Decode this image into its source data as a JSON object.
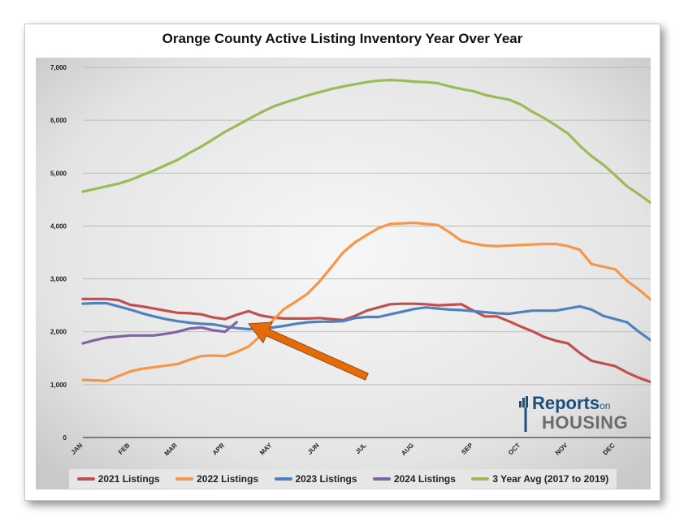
{
  "chart_data": {
    "type": "line",
    "title": "Orange County Active Listing Inventory Year Over Year",
    "xlabel": "",
    "ylabel": "",
    "ylim": [
      0,
      7000
    ],
    "yticks": [
      "0",
      "1,000",
      "2,000",
      "3,000",
      "4,000",
      "5,000",
      "6,000",
      "7,000"
    ],
    "x_month_labels": [
      {
        "label": "JAN",
        "week": 1
      },
      {
        "label": "FEB",
        "week": 5
      },
      {
        "label": "MAR",
        "week": 9
      },
      {
        "label": "APR",
        "week": 13
      },
      {
        "label": "MAY",
        "week": 17
      },
      {
        "label": "JUN",
        "week": 21
      },
      {
        "label": "JUL",
        "week": 25
      },
      {
        "label": "AUG",
        "week": 29
      },
      {
        "label": "SEP",
        "week": 34
      },
      {
        "label": "OCT",
        "week": 38
      },
      {
        "label": "NOV",
        "week": 42
      },
      {
        "label": "DEC",
        "week": 46
      }
    ],
    "x_range": [
      1,
      49
    ],
    "grid": true,
    "legend_position": "bottom",
    "series": [
      {
        "name": "2021 Listings",
        "color": "#c0504d",
        "x": [
          1,
          2,
          3,
          4,
          5,
          6,
          7,
          8,
          9,
          10,
          11,
          12,
          13,
          14,
          15,
          16,
          17,
          18,
          19,
          20,
          21,
          22,
          23,
          24,
          25,
          26,
          27,
          28,
          29,
          30,
          31,
          32,
          33,
          34,
          35,
          36,
          37,
          38,
          39,
          40,
          41,
          42,
          43,
          44,
          45,
          46,
          47,
          48,
          49
        ],
        "values": [
          2620,
          2620,
          2620,
          2600,
          2510,
          2480,
          2440,
          2400,
          2360,
          2350,
          2330,
          2270,
          2240,
          2320,
          2390,
          2310,
          2270,
          2250,
          2250,
          2250,
          2260,
          2240,
          2220,
          2300,
          2400,
          2460,
          2520,
          2530,
          2530,
          2520,
          2500,
          2510,
          2520,
          2400,
          2290,
          2290,
          2200,
          2100,
          2010,
          1900,
          1830,
          1780,
          1600,
          1450,
          1400,
          1350,
          1230,
          1130,
          1050
        ]
      },
      {
        "name": "2022 Listings",
        "color": "#f79646",
        "x": [
          1,
          2,
          3,
          4,
          5,
          6,
          7,
          8,
          9,
          10,
          11,
          12,
          13,
          14,
          15,
          16,
          17,
          18,
          19,
          20,
          21,
          22,
          23,
          24,
          25,
          26,
          27,
          28,
          29,
          30,
          31,
          32,
          33,
          34,
          35,
          36,
          37,
          38,
          39,
          40,
          41,
          42,
          43,
          44,
          45,
          46,
          47,
          48,
          49
        ],
        "values": [
          1090,
          1080,
          1070,
          1160,
          1250,
          1300,
          1330,
          1360,
          1390,
          1470,
          1540,
          1550,
          1540,
          1620,
          1720,
          1920,
          2200,
          2430,
          2570,
          2720,
          2950,
          3220,
          3500,
          3690,
          3830,
          3960,
          4040,
          4050,
          4060,
          4040,
          4020,
          3880,
          3720,
          3670,
          3630,
          3620,
          3630,
          3640,
          3650,
          3660,
          3660,
          3620,
          3550,
          3280,
          3230,
          3180,
          2960,
          2800,
          2610
        ]
      },
      {
        "name": "2023 Listings",
        "color": "#4f81bd",
        "x": [
          1,
          2,
          3,
          4,
          5,
          6,
          7,
          8,
          9,
          10,
          11,
          12,
          13,
          14,
          15,
          16,
          17,
          18,
          19,
          20,
          21,
          22,
          23,
          24,
          25,
          26,
          27,
          28,
          29,
          30,
          31,
          32,
          33,
          34,
          35,
          36,
          37,
          38,
          39,
          40,
          41,
          42,
          43,
          44,
          45,
          46,
          47,
          48,
          49
        ],
        "values": [
          2530,
          2540,
          2540,
          2480,
          2420,
          2350,
          2290,
          2240,
          2200,
          2170,
          2150,
          2140,
          2100,
          2070,
          2050,
          2060,
          2080,
          2110,
          2150,
          2180,
          2190,
          2190,
          2200,
          2260,
          2280,
          2280,
          2330,
          2380,
          2430,
          2460,
          2440,
          2420,
          2410,
          2390,
          2370,
          2350,
          2340,
          2370,
          2400,
          2400,
          2400,
          2440,
          2480,
          2420,
          2300,
          2240,
          2180,
          2000,
          1840
        ]
      },
      {
        "name": "2024 Listings",
        "color": "#8064a2",
        "x": [
          1,
          2,
          3,
          4,
          5,
          6,
          7,
          8,
          9,
          10,
          11,
          12,
          13,
          14
        ],
        "values": [
          1780,
          1840,
          1890,
          1910,
          1930,
          1930,
          1930,
          1960,
          2000,
          2060,
          2080,
          2030,
          2000,
          2180
        ]
      },
      {
        "name": "3 Year Avg (2017 to 2019)",
        "color": "#9bbb59",
        "x": [
          1,
          2,
          3,
          4,
          5,
          6,
          7,
          8,
          9,
          10,
          11,
          12,
          13,
          14,
          15,
          16,
          17,
          18,
          19,
          20,
          21,
          22,
          23,
          24,
          25,
          26,
          27,
          28,
          29,
          30,
          31,
          32,
          33,
          34,
          35,
          36,
          37,
          38,
          39,
          40,
          41,
          42,
          43,
          44,
          45,
          46,
          47,
          48,
          49
        ],
        "values": [
          4650,
          4700,
          4750,
          4800,
          4870,
          4960,
          5050,
          5150,
          5250,
          5380,
          5500,
          5640,
          5780,
          5900,
          6020,
          6140,
          6250,
          6330,
          6400,
          6470,
          6530,
          6590,
          6640,
          6680,
          6720,
          6750,
          6760,
          6750,
          6730,
          6720,
          6700,
          6640,
          6590,
          6550,
          6480,
          6430,
          6390,
          6300,
          6160,
          6040,
          5900,
          5750,
          5520,
          5320,
          5160,
          4960,
          4750,
          4600,
          4440
        ]
      }
    ],
    "annotations": [
      {
        "type": "arrow",
        "color": "#e36c09",
        "from": {
          "week": 25,
          "value": 1150
        },
        "to": {
          "week": 15,
          "value": 2150
        }
      }
    ]
  },
  "logo": {
    "line1": "Reports",
    "line1_small": "on",
    "line2": "HOUSING"
  }
}
